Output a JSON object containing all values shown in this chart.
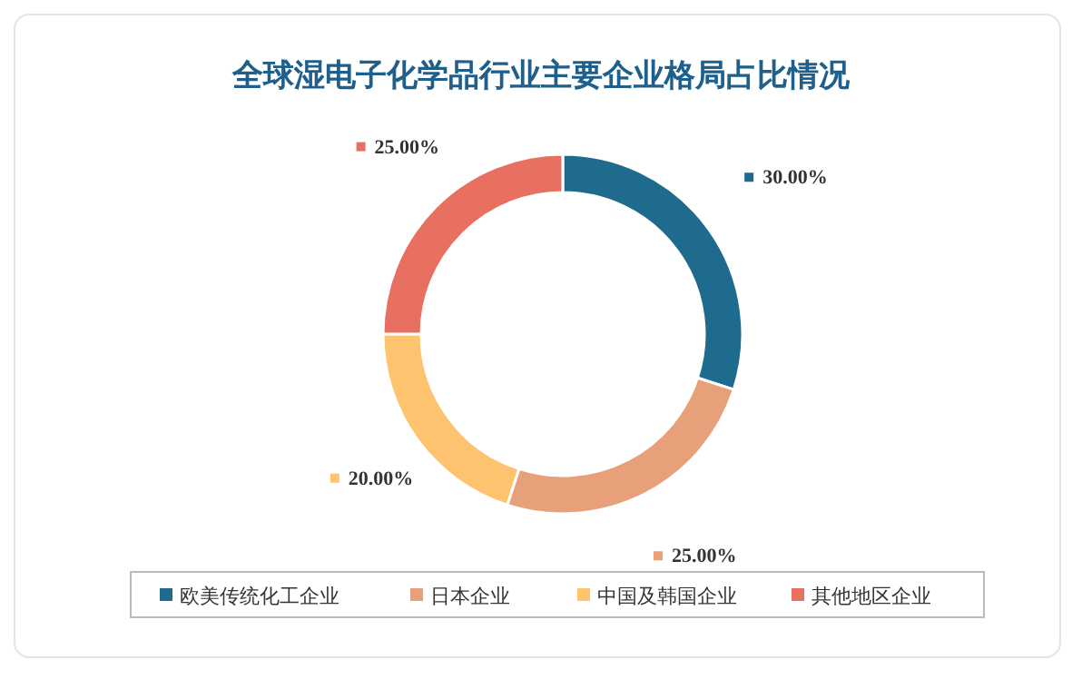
{
  "chart_data": {
    "type": "donut",
    "title": "全球湿电子化学品行业主要企业格局占比情况",
    "categories": [
      "欧美传统化工企业",
      "日本企业",
      "中国及韩国企业",
      "其他地区企业"
    ],
    "values": [
      30,
      25,
      20,
      25
    ],
    "value_labels": [
      "30.00%",
      "25.00%",
      "20.00%",
      "25.00%"
    ],
    "colors": [
      "#1f6b8e",
      "#e8a07a",
      "#fdc36e",
      "#e87060"
    ],
    "legend": "bottom"
  }
}
